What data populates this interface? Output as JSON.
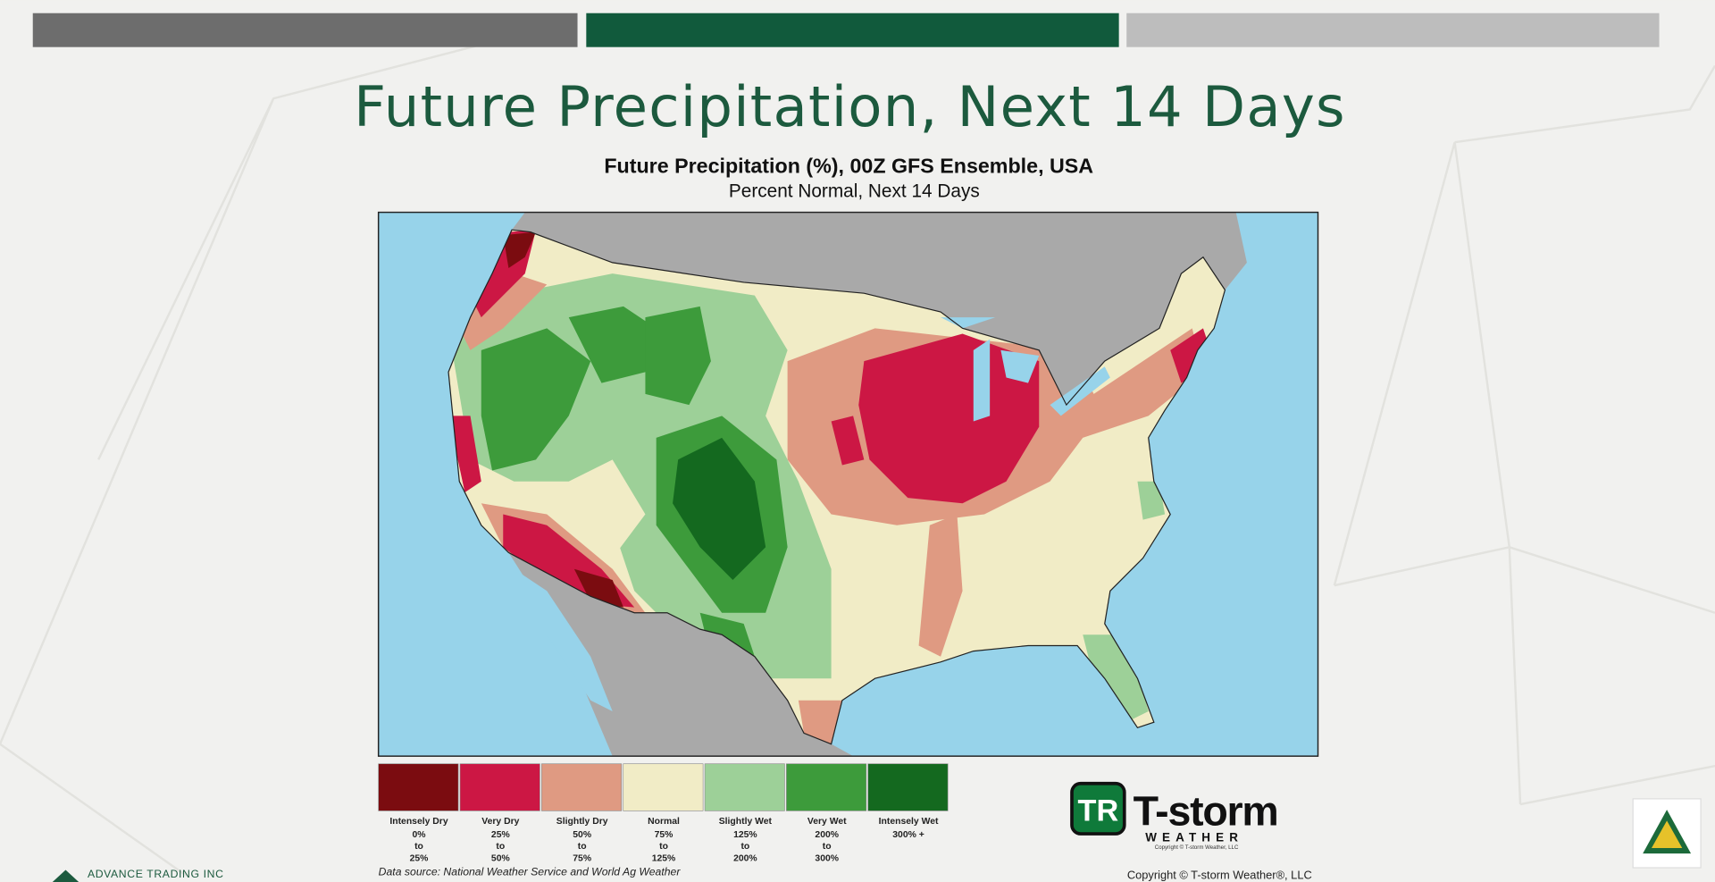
{
  "header": {
    "title": "Future Precipitation, Next 14 Days"
  },
  "map": {
    "title": "Future Precipitation (%), 00Z GFS Ensemble, USA",
    "subtitle": "Percent Normal, Next 14 Days",
    "legend": [
      {
        "label": "Intensely Dry",
        "color": "#7b0c10",
        "range": [
          "0%",
          "to",
          "25%"
        ]
      },
      {
        "label": "Very Dry",
        "color": "#cc1744",
        "range": [
          "25%",
          "to",
          "50%"
        ]
      },
      {
        "label": "Slightly Dry",
        "color": "#df9a82",
        "range": [
          "50%",
          "to",
          "75%"
        ]
      },
      {
        "label": "Normal",
        "color": "#f1ecc6",
        "range": [
          "75%",
          "to",
          "125%"
        ]
      },
      {
        "label": "Slightly Wet",
        "color": "#9dd098",
        "range": [
          "125%",
          "to",
          "200%"
        ]
      },
      {
        "label": "Very Wet",
        "color": "#3d9b3b",
        "range": [
          "200%",
          "to",
          "300%"
        ]
      },
      {
        "label": "Intensely Wet",
        "color": "#14691f",
        "range": [
          "300% +"
        ]
      }
    ],
    "source": "Data source: National Weather Service and World Ag Weather"
  },
  "logo": {
    "name": "T-storm",
    "tagline": "WEATHER",
    "small": "Copyright © T-storm Weather, LLC"
  },
  "copyright": "Copyright © T-storm Weather®, LLC",
  "footer": {
    "company": "ADVANCE TRADING INC"
  }
}
